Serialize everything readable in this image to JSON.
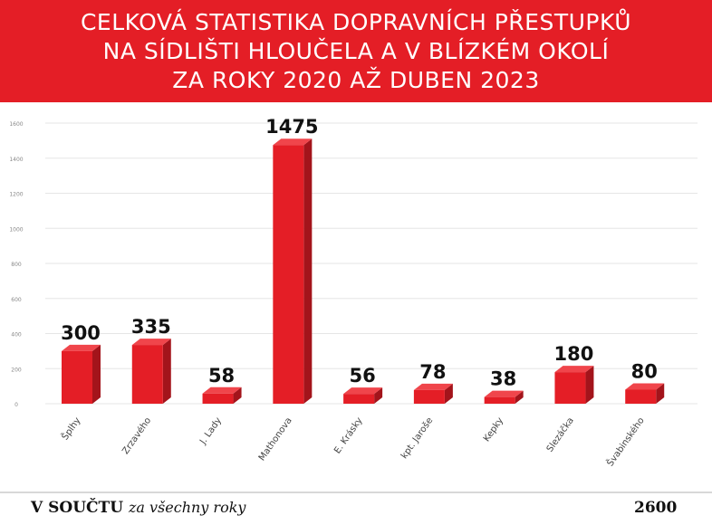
{
  "title_lines": [
    "CELKOVÁ STATISTIKA DOPRAVNÍCH PŘESTUPKŮ",
    "NA SÍDLIŠTI HLOUČELA A V BLÍZKÉM OKOLÍ",
    "ZA ROKY 2020 AŽ DUBEN 2023"
  ],
  "colors": {
    "banner": "#e41e26",
    "bar_front": "#e41e26",
    "bar_side": "#a3141b",
    "bar_top": "#f0454b",
    "grid": "#e6e6e6"
  },
  "chart_data": {
    "type": "bar",
    "categories": [
      "Šplhy",
      "Zrzavého",
      "J. Lady",
      "Mathonova",
      "E. Krásky",
      "kpt. Jaroše",
      "Kepky",
      "Slezáčka",
      "Švabinského"
    ],
    "values": [
      300,
      335,
      58,
      1475,
      56,
      78,
      38,
      180,
      80
    ],
    "ytick_labels": [
      "0",
      "200",
      "400",
      "600",
      "800",
      "1000",
      "1200",
      "1400",
      "1600"
    ],
    "ylim": [
      0,
      1600
    ],
    "grid": true,
    "style": "3d-bars"
  },
  "summary": {
    "label_bold": "V SOUČTU",
    "label_italic": "za všechny roky",
    "total": "2600"
  }
}
